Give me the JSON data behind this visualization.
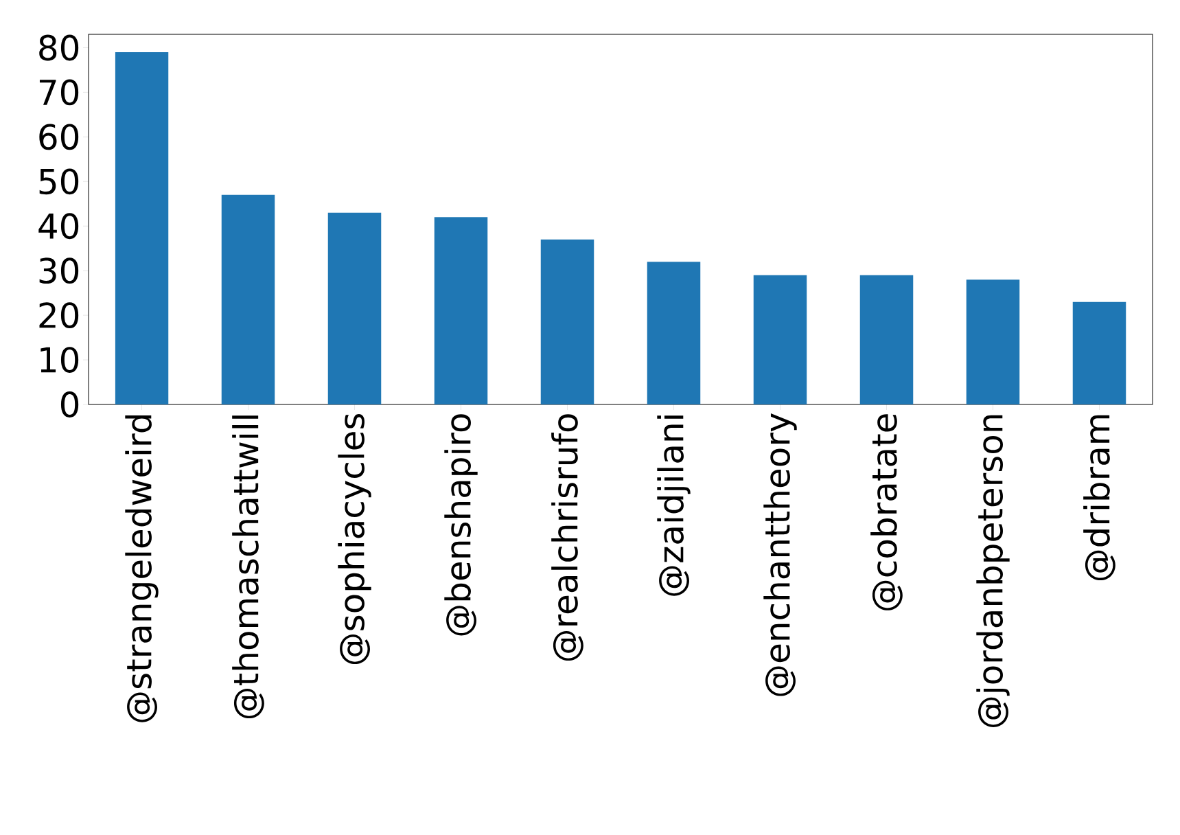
{
  "chart_data": {
    "type": "bar",
    "categories": [
      "@strangeledweird",
      "@thomaschattwill",
      "@sophiacycles",
      "@benshapiro",
      "@realchrisrufo",
      "@zaidjilani",
      "@enchanttheory",
      "@cobratate",
      "@jordanbpeterson",
      "@dribram"
    ],
    "values": [
      79,
      47,
      43,
      42,
      37,
      32,
      29,
      29,
      28,
      23
    ],
    "color": "#1f77b4",
    "ylim": [
      0,
      83
    ],
    "yticks": [
      0,
      10,
      20,
      30,
      40,
      50,
      60,
      70,
      80
    ]
  }
}
